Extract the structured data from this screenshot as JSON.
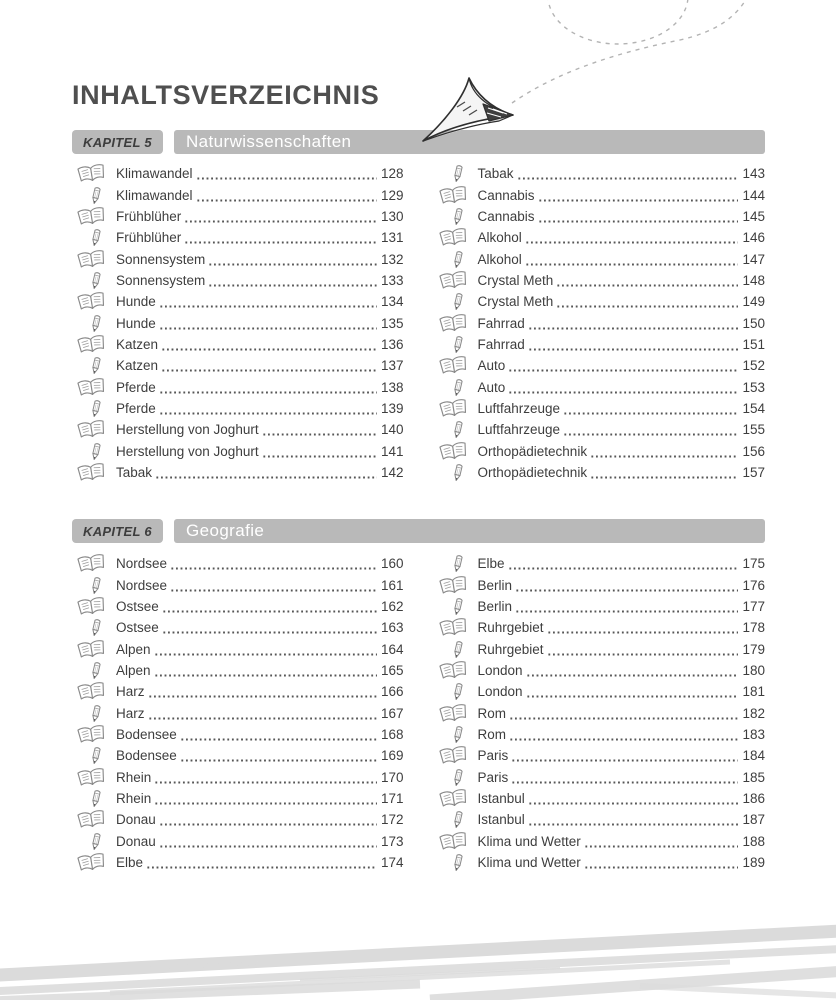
{
  "title": "INHALTSVERZEICHNIS",
  "colors": {
    "bar-gray": "#b9b9b9",
    "bar-text": "#ffffff",
    "title-gray": "#4f4f4f",
    "text-dark": "#3e3e3e",
    "leader-dot": "#565656",
    "icon-gray": "#8a8a8a",
    "path-gray": "#b3b3b3",
    "brush-gray": "#dbdbdb"
  },
  "icons": {
    "book": "open-book-icon",
    "pencil": "pencil-icon"
  },
  "chapters": [
    {
      "badge": "KAPITEL 5",
      "title": "Naturwissenschaften",
      "columns": [
        [
          {
            "icon": "book",
            "label": "Klimawandel",
            "page": "128"
          },
          {
            "icon": "pencil",
            "label": "Klimawandel",
            "page": "129"
          },
          {
            "icon": "book",
            "label": "Frühblüher",
            "page": "130"
          },
          {
            "icon": "pencil",
            "label": "Frühblüher",
            "page": "131"
          },
          {
            "icon": "book",
            "label": "Sonnensystem",
            "page": "132"
          },
          {
            "icon": "pencil",
            "label": "Sonnensystem",
            "page": "133"
          },
          {
            "icon": "book",
            "label": "Hunde",
            "page": "134"
          },
          {
            "icon": "pencil",
            "label": "Hunde",
            "page": "135"
          },
          {
            "icon": "book",
            "label": "Katzen",
            "page": "136"
          },
          {
            "icon": "pencil",
            "label": "Katzen",
            "page": "137"
          },
          {
            "icon": "book",
            "label": "Pferde",
            "page": "138"
          },
          {
            "icon": "pencil",
            "label": "Pferde",
            "page": "139"
          },
          {
            "icon": "book",
            "label": "Herstellung von Joghurt",
            "page": "140"
          },
          {
            "icon": "pencil",
            "label": "Herstellung von Joghurt",
            "page": "141"
          },
          {
            "icon": "book",
            "label": "Tabak",
            "page": "142"
          }
        ],
        [
          {
            "icon": "pencil",
            "label": "Tabak",
            "page": "143"
          },
          {
            "icon": "book",
            "label": "Cannabis",
            "page": "144"
          },
          {
            "icon": "pencil",
            "label": "Cannabis",
            "page": "145"
          },
          {
            "icon": "book",
            "label": "Alkohol",
            "page": "146"
          },
          {
            "icon": "pencil",
            "label": "Alkohol",
            "page": "147"
          },
          {
            "icon": "book",
            "label": "Crystal Meth",
            "page": "148"
          },
          {
            "icon": "pencil",
            "label": "Crystal Meth",
            "page": "149"
          },
          {
            "icon": "book",
            "label": "Fahrrad",
            "page": "150"
          },
          {
            "icon": "pencil",
            "label": "Fahrrad",
            "page": "151"
          },
          {
            "icon": "book",
            "label": "Auto",
            "page": "152"
          },
          {
            "icon": "pencil",
            "label": "Auto",
            "page": "153"
          },
          {
            "icon": "book",
            "label": "Luftfahrzeuge",
            "page": "154"
          },
          {
            "icon": "pencil",
            "label": "Luftfahrzeuge",
            "page": "155"
          },
          {
            "icon": "book",
            "label": "Orthopädietechnik",
            "page": "156"
          },
          {
            "icon": "pencil",
            "label": "Orthopädietechnik",
            "page": "157"
          }
        ]
      ]
    },
    {
      "badge": "KAPITEL 6",
      "title": "Geografie",
      "columns": [
        [
          {
            "icon": "book",
            "label": "Nordsee",
            "page": "160"
          },
          {
            "icon": "pencil",
            "label": "Nordsee",
            "page": "161"
          },
          {
            "icon": "book",
            "label": "Ostsee",
            "page": "162"
          },
          {
            "icon": "pencil",
            "label": "Ostsee",
            "page": "163"
          },
          {
            "icon": "book",
            "label": "Alpen",
            "page": "164"
          },
          {
            "icon": "pencil",
            "label": "Alpen",
            "page": "165"
          },
          {
            "icon": "book",
            "label": "Harz",
            "page": "166"
          },
          {
            "icon": "pencil",
            "label": "Harz",
            "page": "167"
          },
          {
            "icon": "book",
            "label": "Bodensee",
            "page": "168"
          },
          {
            "icon": "pencil",
            "label": "Bodensee",
            "page": "169"
          },
          {
            "icon": "book",
            "label": "Rhein",
            "page": "170"
          },
          {
            "icon": "pencil",
            "label": "Rhein",
            "page": "171"
          },
          {
            "icon": "book",
            "label": "Donau",
            "page": "172"
          },
          {
            "icon": "pencil",
            "label": "Donau",
            "page": "173"
          },
          {
            "icon": "book",
            "label": "Elbe",
            "page": "174"
          }
        ],
        [
          {
            "icon": "pencil",
            "label": "Elbe",
            "page": "175"
          },
          {
            "icon": "book",
            "label": "Berlin",
            "page": "176"
          },
          {
            "icon": "pencil",
            "label": "Berlin",
            "page": "177"
          },
          {
            "icon": "book",
            "label": "Ruhrgebiet",
            "page": "178"
          },
          {
            "icon": "pencil",
            "label": "Ruhrgebiet",
            "page": "179"
          },
          {
            "icon": "book",
            "label": "London",
            "page": "180"
          },
          {
            "icon": "pencil",
            "label": "London",
            "page": "181"
          },
          {
            "icon": "book",
            "label": "Rom",
            "page": "182"
          },
          {
            "icon": "pencil",
            "label": "Rom",
            "page": "183"
          },
          {
            "icon": "book",
            "label": "Paris",
            "page": "184"
          },
          {
            "icon": "pencil",
            "label": "Paris",
            "page": "185"
          },
          {
            "icon": "book",
            "label": "Istanbul",
            "page": "186"
          },
          {
            "icon": "pencil",
            "label": "Istanbul",
            "page": "187"
          },
          {
            "icon": "book",
            "label": "Klima und Wetter",
            "page": "188"
          },
          {
            "icon": "pencil",
            "label": "Klima und Wetter",
            "page": "189"
          }
        ]
      ]
    }
  ]
}
